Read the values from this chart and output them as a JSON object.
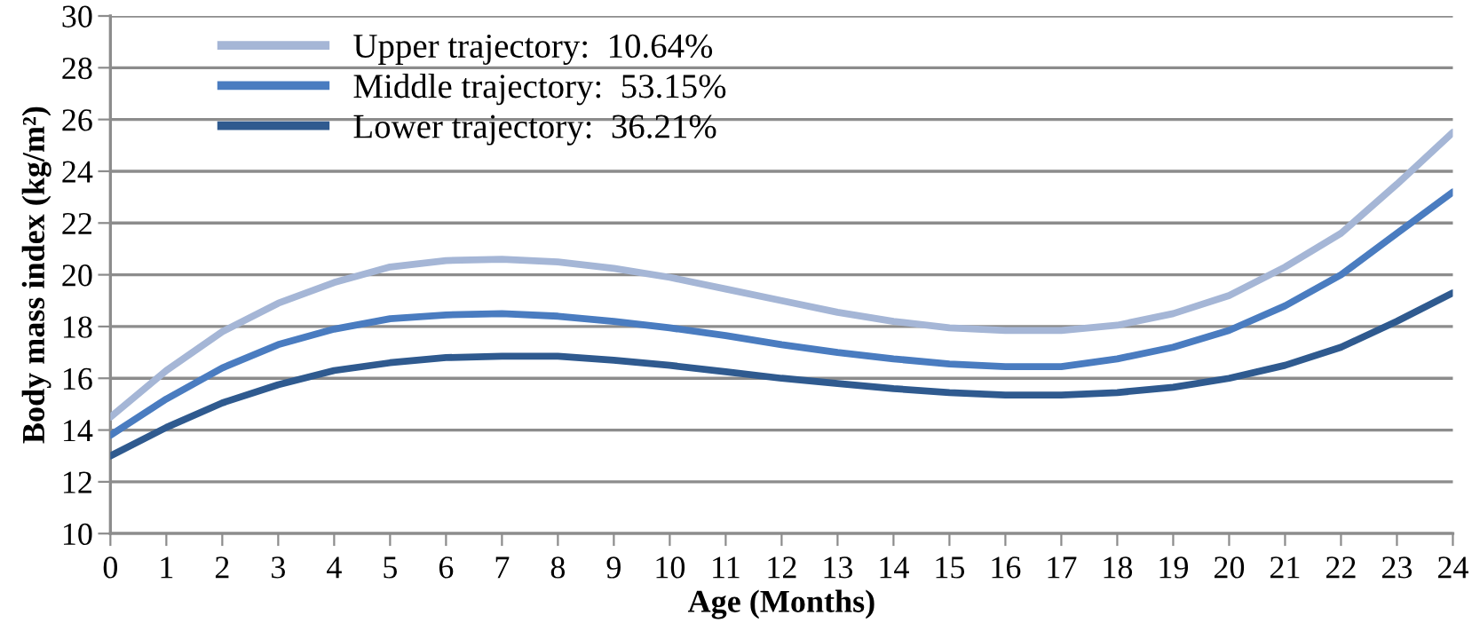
{
  "chart_data": {
    "type": "line",
    "xlabel": "Age (Months)",
    "ylabel": "Body mass index (kg/m²)",
    "x": [
      0,
      1,
      2,
      3,
      4,
      5,
      6,
      7,
      8,
      9,
      10,
      11,
      12,
      13,
      14,
      15,
      16,
      17,
      18,
      19,
      20,
      21,
      22,
      23,
      24
    ],
    "series": [
      {
        "name": "Upper trajectory:  10.64%",
        "color": "#a5b6d6",
        "values": [
          14.5,
          16.3,
          17.8,
          18.9,
          19.7,
          20.3,
          20.55,
          20.6,
          20.5,
          20.25,
          19.9,
          19.45,
          19.0,
          18.55,
          18.2,
          17.95,
          17.85,
          17.85,
          18.05,
          18.5,
          19.2,
          20.3,
          21.6,
          23.5,
          25.5
        ]
      },
      {
        "name": "Middle trajectory:  53.15%",
        "color": "#4a7cc0",
        "values": [
          13.8,
          15.2,
          16.4,
          17.3,
          17.9,
          18.3,
          18.45,
          18.5,
          18.4,
          18.2,
          17.95,
          17.65,
          17.3,
          17.0,
          16.75,
          16.55,
          16.45,
          16.45,
          16.75,
          17.2,
          17.85,
          18.8,
          20.0,
          21.6,
          23.2
        ]
      },
      {
        "name": "Lower trajectory:  36.21%",
        "color": "#2f5a8f",
        "values": [
          13.0,
          14.1,
          15.05,
          15.75,
          16.3,
          16.6,
          16.8,
          16.85,
          16.85,
          16.7,
          16.5,
          16.25,
          16.0,
          15.8,
          15.6,
          15.45,
          15.35,
          15.35,
          15.45,
          15.65,
          16.0,
          16.5,
          17.2,
          18.2,
          19.3
        ]
      }
    ],
    "xlim": [
      0,
      24
    ],
    "xticks": [
      0,
      1,
      2,
      3,
      4,
      5,
      6,
      7,
      8,
      9,
      10,
      11,
      12,
      13,
      14,
      15,
      16,
      17,
      18,
      19,
      20,
      21,
      22,
      23,
      24
    ],
    "ylim": [
      10,
      30
    ],
    "yticks": [
      10,
      12,
      14,
      16,
      18,
      20,
      22,
      24,
      26,
      28,
      30
    ],
    "grid": "y",
    "legend": "top left",
    "marker": "none",
    "line_style": "solid"
  }
}
